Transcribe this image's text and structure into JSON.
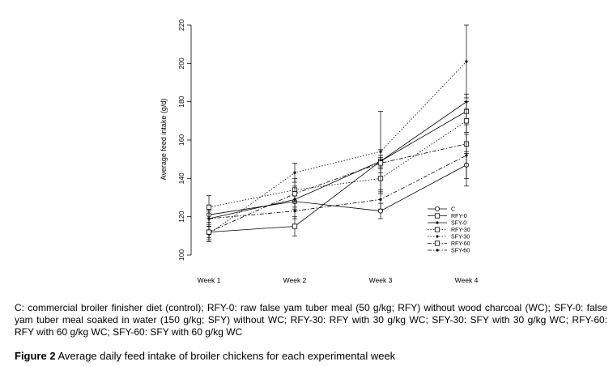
{
  "chart_data": {
    "type": "line",
    "title": "",
    "xlabel": "",
    "ylabel": "Average feed intake (g/d)",
    "categories": [
      "Week 1",
      "Week 2",
      "Week 3",
      "Week 4"
    ],
    "ylim": [
      100,
      220
    ],
    "yticks": [
      100,
      120,
      140,
      160,
      180,
      200,
      220
    ],
    "grid": false,
    "legend_position": "bottom-right",
    "series": [
      {
        "name": "C",
        "marker": "circle",
        "dash": "solid",
        "values": [
          121,
          128,
          123,
          147
        ],
        "errors": [
          4,
          4,
          4,
          7
        ]
      },
      {
        "name": "RFY-0",
        "marker": "square",
        "dash": "solid",
        "values": [
          112,
          115,
          149,
          175
        ],
        "errors": [
          3,
          5,
          3,
          5
        ]
      },
      {
        "name": "SFY-0",
        "marker": "dot",
        "dash": "solid",
        "values": [
          119,
          129,
          149,
          180
        ],
        "errors": [
          4,
          4,
          6,
          4
        ]
      },
      {
        "name": "RFY-30",
        "marker": "square",
        "dash": "dotted",
        "values": [
          125,
          134,
          140,
          170
        ],
        "errors": [
          6,
          6,
          8,
          6
        ]
      },
      {
        "name": "SFY-30",
        "marker": "dot",
        "dash": "dotted",
        "values": [
          111,
          143,
          154,
          201
        ],
        "errors": [
          4,
          5,
          21,
          19
        ]
      },
      {
        "name": "RFY-60",
        "marker": "square",
        "dash": "dashdot",
        "values": [
          112,
          132,
          148,
          158
        ],
        "errors": [
          4,
          4,
          3,
          5
        ]
      },
      {
        "name": "SFY-60",
        "marker": "dot",
        "dash": "dashdot",
        "values": [
          119,
          123,
          129,
          152
        ],
        "errors": [
          4,
          4,
          5,
          16
        ]
      }
    ]
  },
  "note": "C: commercial broiler finisher diet (control); RFY-0: raw false yam tuber meal (50 g/kg; RFY) without wood charcoal (WC); SFY-0: false yam tuber meal soaked in water (150 g/kg; SFY) without WC; RFY-30: RFY with 30 g/kg WC; SFY-30: SFY with 30 g/kg WC; RFY-60: RFY with 60 g/kg WC; SFY-60: SFY with 60 g/kg WC",
  "caption": {
    "label": "Figure 2",
    "text": " Average daily feed intake of broiler chickens for each experimental week"
  }
}
